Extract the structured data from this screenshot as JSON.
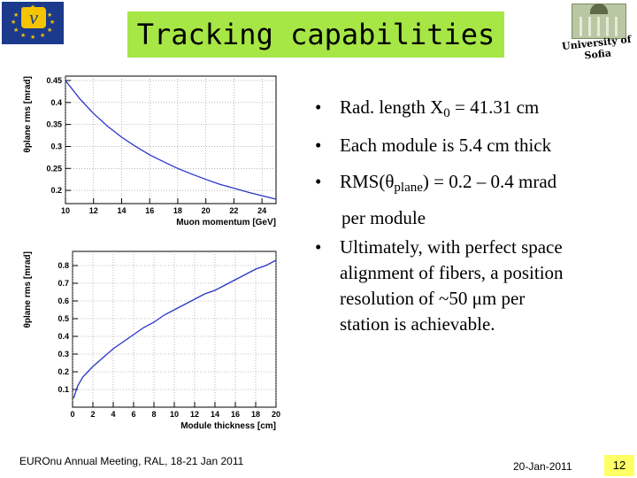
{
  "title": "Tracking capabilities",
  "logo_left": {
    "symbol": "ν",
    "color": "#1b3a8c"
  },
  "logo_right": {
    "text": "University of Sofia"
  },
  "bullets": [
    {
      "pre": "Rad. length X",
      "sub": "0",
      "post": " = 41.31 cm"
    },
    {
      "text": "Each module is 5.4 cm thick"
    },
    {
      "pre": "RMS(θ",
      "sub": "plane",
      "post": ") = 0.2 – 0.4 mrad"
    },
    {
      "text": "per module"
    },
    {
      "lines": [
        "Ultimately, with perfect space",
        "alignment of fibers, a position",
        "resolution of ~50 μm per",
        "station is achievable."
      ]
    }
  ],
  "footer": {
    "left": "EUROnu Annual Meeting, RAL, 18-21 Jan 2011",
    "date": "20-Jan-2011",
    "page": "12"
  },
  "chart_data": [
    {
      "type": "line",
      "xlabel": "Muon momentum [GeV]",
      "ylabel": "θplane rms [mrad]",
      "xlim": [
        10,
        25
      ],
      "ylim": [
        0.17,
        0.46
      ],
      "xticks": [
        10,
        12,
        14,
        16,
        18,
        20,
        22,
        24
      ],
      "yticks": [
        0.2,
        0.25,
        0.3,
        0.35,
        0.4,
        0.45
      ],
      "x": [
        10,
        11,
        12,
        13,
        14,
        15,
        16,
        17,
        18,
        19,
        20,
        21,
        22,
        23,
        24,
        25
      ],
      "y": [
        0.45,
        0.409,
        0.375,
        0.346,
        0.321,
        0.3,
        0.281,
        0.265,
        0.25,
        0.237,
        0.225,
        0.214,
        0.205,
        0.196,
        0.188,
        0.18
      ],
      "color": "#2a34c8",
      "grid": true
    },
    {
      "type": "line",
      "xlabel": "Module thickness [cm]",
      "ylabel": "θplane rms [mrad]",
      "xlim": [
        0,
        20
      ],
      "ylim": [
        0,
        0.88
      ],
      "xticks": [
        0,
        2,
        4,
        6,
        8,
        10,
        12,
        14,
        16,
        18,
        20
      ],
      "yticks": [
        0.1,
        0.2,
        0.3,
        0.4,
        0.5,
        0.6,
        0.7,
        0.8
      ],
      "x": [
        0.1,
        0.5,
        1,
        2,
        3,
        4,
        5,
        6,
        7,
        8,
        9,
        10,
        11,
        12,
        13,
        14,
        15,
        16,
        17,
        18,
        19,
        20
      ],
      "y": [
        0.05,
        0.12,
        0.17,
        0.23,
        0.28,
        0.33,
        0.37,
        0.41,
        0.45,
        0.48,
        0.52,
        0.55,
        0.58,
        0.61,
        0.64,
        0.66,
        0.69,
        0.72,
        0.75,
        0.78,
        0.8,
        0.83
      ],
      "color": "#2a34c8",
      "grid": true
    }
  ]
}
